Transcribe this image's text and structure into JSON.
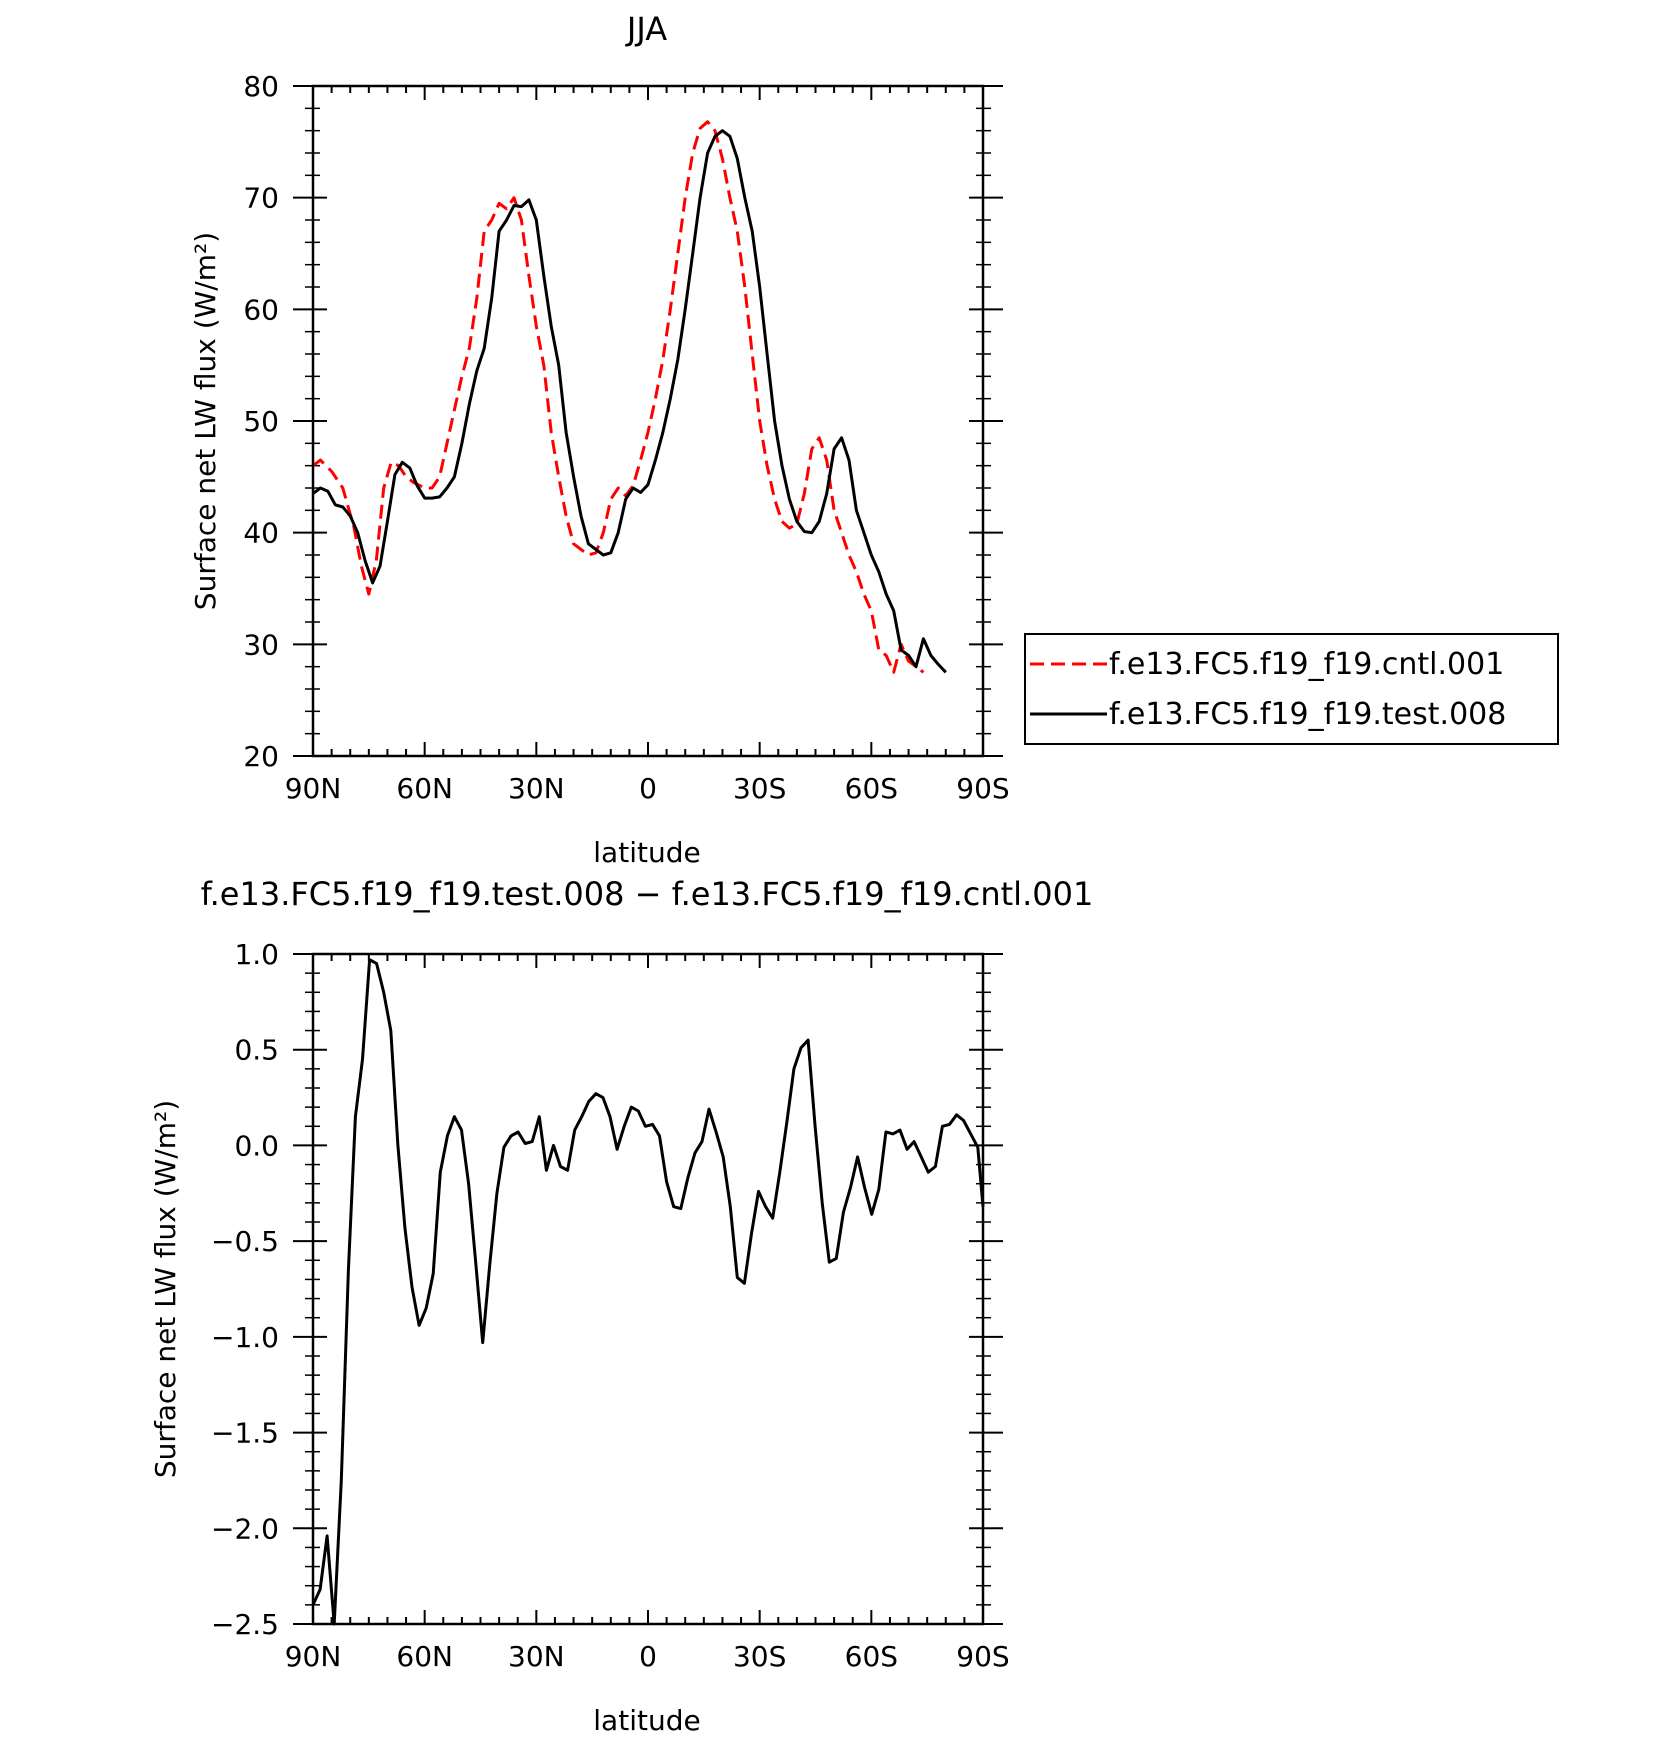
{
  "charts": [
    {
      "type": "line",
      "title": "JJA",
      "xlabel": "latitude",
      "ylabel": "Surface net LW flux (W/m²)",
      "xlim": [
        90,
        -90
      ],
      "ylim": [
        20,
        80
      ],
      "x_ticks": [
        90,
        60,
        30,
        0,
        -30,
        -60,
        -90
      ],
      "x_tick_labels": [
        "90N",
        "60N",
        "30N",
        "0",
        "30S",
        "60S",
        "90S"
      ],
      "y_ticks": [
        20,
        30,
        40,
        50,
        60,
        70,
        80
      ],
      "y_tick_labels": [
        "20",
        "30",
        "40",
        "50",
        "60",
        "70",
        "80"
      ],
      "legend_placement": "right",
      "series": [
        {
          "name": "f.e13.FC5.f19_f19.cntl.001",
          "color": "#ff0000",
          "dash": "dashed",
          "points": [
            [
              90,
              46
            ],
            [
              88,
              46.5
            ],
            [
              85,
              45.5
            ],
            [
              82,
              44
            ],
            [
              79,
              40.5
            ],
            [
              77,
              37
            ],
            [
              75,
              34.5
            ],
            [
              73,
              37.5
            ],
            [
              71,
              44
            ],
            [
              69,
              46.3
            ],
            [
              67,
              46
            ],
            [
              65,
              45
            ],
            [
              63,
              44.5
            ],
            [
              60,
              44
            ],
            [
              58,
              44
            ],
            [
              56,
              45
            ],
            [
              54,
              48
            ],
            [
              52,
              51
            ],
            [
              50,
              54
            ],
            [
              48,
              56.5
            ],
            [
              46,
              61
            ],
            [
              44,
              67
            ],
            [
              42,
              68
            ],
            [
              40,
              69.5
            ],
            [
              38,
              69
            ],
            [
              36,
              70
            ],
            [
              34,
              68
            ],
            [
              32,
              63
            ],
            [
              30,
              58.5
            ],
            [
              28,
              55
            ],
            [
              26,
              49
            ],
            [
              24,
              45
            ],
            [
              22,
              41.5
            ],
            [
              20,
              39
            ],
            [
              18,
              38.5
            ],
            [
              16,
              38
            ],
            [
              14,
              38.2
            ],
            [
              12,
              40
            ],
            [
              10,
              43
            ],
            [
              8,
              44
            ],
            [
              6,
              43.3
            ],
            [
              4,
              44.2
            ],
            [
              2,
              46.5
            ],
            [
              0,
              49
            ],
            [
              -2,
              52
            ],
            [
              -4,
              55.5
            ],
            [
              -6,
              60
            ],
            [
              -8,
              65
            ],
            [
              -10,
              70
            ],
            [
              -12,
              74
            ],
            [
              -14,
              76.2
            ],
            [
              -16,
              76.8
            ],
            [
              -18,
              76
            ],
            [
              -20,
              73.5
            ],
            [
              -22,
              70
            ],
            [
              -24,
              67
            ],
            [
              -26,
              62
            ],
            [
              -28,
              56
            ],
            [
              -30,
              50
            ],
            [
              -32,
              46
            ],
            [
              -34,
              43
            ],
            [
              -36,
              41
            ],
            [
              -38,
              40.4
            ],
            [
              -40,
              40.8
            ],
            [
              -42,
              43.5
            ],
            [
              -44,
              47.5
            ],
            [
              -46,
              48.5
            ],
            [
              -48,
              46.5
            ],
            [
              -50,
              42
            ],
            [
              -52,
              40
            ],
            [
              -54,
              38
            ],
            [
              -56,
              36.5
            ],
            [
              -58,
              34.5
            ],
            [
              -60,
              33
            ],
            [
              -62,
              29.5
            ],
            [
              -64,
              29
            ],
            [
              -66,
              27.5
            ],
            [
              -68,
              30
            ],
            [
              -70,
              28.5
            ],
            [
              -72,
              28
            ],
            [
              -74,
              27.5
            ]
          ]
        },
        {
          "name": "f.e13.FC5.f19_f19.test.008",
          "color": "#000000",
          "dash": "solid",
          "points": [
            [
              90,
              43.5
            ],
            [
              88,
              44
            ],
            [
              86,
              43.7
            ],
            [
              84,
              42.5
            ],
            [
              82,
              42.3
            ],
            [
              80,
              41.5
            ],
            [
              78,
              40
            ],
            [
              76,
              37.5
            ],
            [
              74,
              35.5
            ],
            [
              72,
              37
            ],
            [
              70,
              41
            ],
            [
              68,
              45.2
            ],
            [
              66,
              46.3
            ],
            [
              64,
              45.8
            ],
            [
              62,
              44.2
            ],
            [
              60,
              43.1
            ],
            [
              58,
              43.1
            ],
            [
              56,
              43.2
            ],
            [
              54,
              44
            ],
            [
              52,
              45
            ],
            [
              50,
              48
            ],
            [
              48,
              51.5
            ],
            [
              46,
              54.5
            ],
            [
              44,
              56.5
            ],
            [
              42,
              61
            ],
            [
              40,
              67
            ],
            [
              38,
              68
            ],
            [
              36,
              69.3
            ],
            [
              34,
              69.2
            ],
            [
              32,
              69.8
            ],
            [
              30,
              68
            ],
            [
              28,
              63
            ],
            [
              26,
              58.5
            ],
            [
              24,
              55
            ],
            [
              22,
              49
            ],
            [
              20,
              45
            ],
            [
              18,
              41.5
            ],
            [
              16,
              39
            ],
            [
              14,
              38.5
            ],
            [
              12,
              38
            ],
            [
              10,
              38.2
            ],
            [
              8,
              40
            ],
            [
              6,
              43
            ],
            [
              4,
              44
            ],
            [
              2,
              43.6
            ],
            [
              0,
              44.3
            ],
            [
              -2,
              46.5
            ],
            [
              -4,
              49
            ],
            [
              -6,
              52
            ],
            [
              -8,
              55.5
            ],
            [
              -10,
              60
            ],
            [
              -12,
              65
            ],
            [
              -14,
              70
            ],
            [
              -16,
              74
            ],
            [
              -18,
              75.5
            ],
            [
              -20,
              76
            ],
            [
              -22,
              75.5
            ],
            [
              -24,
              73.5
            ],
            [
              -26,
              70
            ],
            [
              -28,
              67
            ],
            [
              -30,
              62
            ],
            [
              -32,
              56
            ],
            [
              -34,
              50
            ],
            [
              -36,
              46
            ],
            [
              -38,
              43
            ],
            [
              -40,
              41
            ],
            [
              -42,
              40.1
            ],
            [
              -44,
              40
            ],
            [
              -46,
              41
            ],
            [
              -48,
              43.5
            ],
            [
              -50,
              47.5
            ],
            [
              -52,
              48.5
            ],
            [
              -54,
              46.5
            ],
            [
              -56,
              42
            ],
            [
              -58,
              40
            ],
            [
              -60,
              38
            ],
            [
              -62,
              36.5
            ],
            [
              -64,
              34.5
            ],
            [
              -66,
              33
            ],
            [
              -68,
              29.5
            ],
            [
              -70,
              29
            ],
            [
              -72,
              28
            ],
            [
              -74,
              30.5
            ],
            [
              -76,
              29
            ],
            [
              -78,
              28.2
            ],
            [
              -80,
              27.5
            ]
          ]
        }
      ]
    },
    {
      "type": "line",
      "title": "f.e13.FC5.f19_f19.test.008 − f.e13.FC5.f19_f19.cntl.001",
      "xlabel": "latitude",
      "ylabel": "Surface net LW flux (W/m²)",
      "xlim": [
        90,
        -90
      ],
      "ylim": [
        -2.5,
        1.0
      ],
      "x_ticks": [
        90,
        60,
        30,
        0,
        -30,
        -60,
        -90
      ],
      "x_tick_labels": [
        "90N",
        "60N",
        "30N",
        "0",
        "30S",
        "60S",
        "90S"
      ],
      "y_ticks": [
        -2.5,
        -2.0,
        -1.5,
        -1.0,
        -0.5,
        0.0,
        0.5,
        1.0
      ],
      "y_tick_labels": [
        "−2.5",
        "−2.0",
        "−1.5",
        "−1.0",
        "−0.5",
        "0.0",
        "0.5",
        "1.0"
      ],
      "series": [
        {
          "color": "#000000",
          "dash": "solid",
          "points": [
            [
              90,
              -2.4
            ],
            [
              88.1,
              -2.32
            ],
            [
              86.2,
              -2.04
            ],
            [
              84.3,
              -2.5
            ],
            [
              82.4,
              -1.75
            ],
            [
              80.5,
              -0.65
            ],
            [
              78.6,
              0.15
            ],
            [
              76.7,
              0.45
            ],
            [
              74.8,
              0.97
            ],
            [
              72.9,
              0.95
            ],
            [
              71,
              0.8
            ],
            [
              69.1,
              0.6
            ],
            [
              67.2,
              0.0
            ],
            [
              65.3,
              -0.43
            ],
            [
              63.4,
              -0.74
            ],
            [
              61.5,
              -0.94
            ],
            [
              59.6,
              -0.85
            ],
            [
              57.7,
              -0.67
            ],
            [
              55.8,
              -0.14
            ],
            [
              53.9,
              0.05
            ],
            [
              52,
              0.15
            ],
            [
              50.1,
              0.08
            ],
            [
              48.2,
              -0.2
            ],
            [
              46.3,
              -0.61
            ],
            [
              44.4,
              -1.03
            ],
            [
              42.5,
              -0.62
            ],
            [
              40.6,
              -0.25
            ],
            [
              38.7,
              -0.01
            ],
            [
              36.8,
              0.05
            ],
            [
              34.9,
              0.07
            ],
            [
              33,
              0.01
            ],
            [
              31.1,
              0.02
            ],
            [
              29.2,
              0.15
            ],
            [
              27.3,
              -0.13
            ],
            [
              25.4,
              0.0
            ],
            [
              23.5,
              -0.11
            ],
            [
              21.6,
              -0.13
            ],
            [
              19.7,
              0.08
            ],
            [
              17.8,
              0.15
            ],
            [
              15.9,
              0.23
            ],
            [
              14,
              0.27
            ],
            [
              12.1,
              0.25
            ],
            [
              10.2,
              0.15
            ],
            [
              8.3,
              -0.02
            ],
            [
              6.4,
              0.1
            ],
            [
              4.5,
              0.2
            ],
            [
              2.6,
              0.18
            ],
            [
              0.7,
              0.1
            ],
            [
              -1.2,
              0.11
            ],
            [
              -3.1,
              0.05
            ],
            [
              -5,
              -0.19
            ],
            [
              -6.9,
              -0.32
            ],
            [
              -8.8,
              -0.33
            ],
            [
              -10.7,
              -0.17
            ],
            [
              -12.6,
              -0.04
            ],
            [
              -14.5,
              0.02
            ],
            [
              -16.4,
              0.19
            ],
            [
              -18.3,
              0.07
            ],
            [
              -20.2,
              -0.06
            ],
            [
              -22.1,
              -0.32
            ],
            [
              -24,
              -0.69
            ],
            [
              -25.9,
              -0.72
            ],
            [
              -27.8,
              -0.46
            ],
            [
              -29.7,
              -0.24
            ],
            [
              -31.6,
              -0.32
            ],
            [
              -33.5,
              -0.38
            ],
            [
              -35.4,
              -0.14
            ],
            [
              -37.3,
              0.12
            ],
            [
              -39.2,
              0.4
            ],
            [
              -41.1,
              0.51
            ],
            [
              -43,
              0.55
            ],
            [
              -44.9,
              0.1
            ],
            [
              -46.8,
              -0.3
            ],
            [
              -48.7,
              -0.61
            ],
            [
              -50.6,
              -0.59
            ],
            [
              -52.5,
              -0.35
            ],
            [
              -54.4,
              -0.22
            ],
            [
              -56.3,
              -0.06
            ],
            [
              -58.2,
              -0.22
            ],
            [
              -60.1,
              -0.36
            ],
            [
              -62,
              -0.23
            ],
            [
              -63.9,
              0.07
            ],
            [
              -65.8,
              0.06
            ],
            [
              -67.7,
              0.08
            ],
            [
              -69.6,
              -0.02
            ],
            [
              -71.5,
              0.02
            ],
            [
              -73.4,
              -0.06
            ],
            [
              -75.3,
              -0.14
            ],
            [
              -77.2,
              -0.11
            ],
            [
              -79.1,
              0.1
            ],
            [
              -81,
              0.11
            ],
            [
              -82.9,
              0.16
            ],
            [
              -84.8,
              0.13
            ],
            [
              -86.7,
              0.06
            ],
            [
              -88.6,
              -0.01
            ],
            [
              -90,
              -0.32
            ]
          ]
        }
      ]
    }
  ]
}
